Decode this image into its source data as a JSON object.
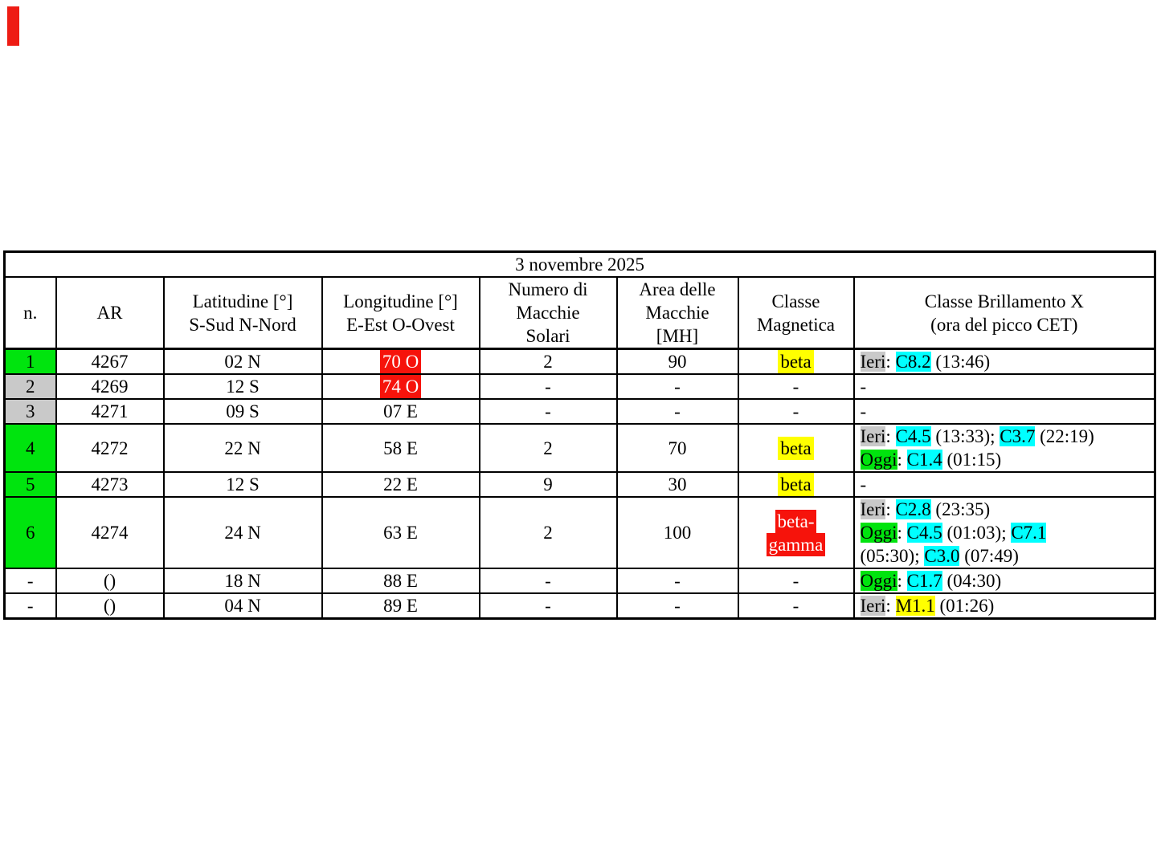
{
  "colors": {
    "green": "#00e40e",
    "gray": "#c9c9c9",
    "yellow": "#ffff00",
    "cyan": "#00ffff",
    "red": "#f6130b",
    "marker": "#ee1c14"
  },
  "table": {
    "title": "3 novembre 2025",
    "headers": [
      "n.",
      "AR",
      "Latitudine [°]\nS-Sud N-Nord",
      "Longitudine [°]\nE-Est O-Ovest",
      "Numero di\nMacchie\nSolari",
      "Area delle\nMacchie\n[MH]",
      "Classe\nMagnetica",
      "Classe Brillamento X\n(ora del picco CET)"
    ],
    "rows": [
      {
        "n": {
          "t": "1",
          "bg": "green"
        },
        "ar": "4267",
        "lat": "02 N",
        "lon": [
          {
            "t": "70 O",
            "h": "red"
          }
        ],
        "num": "2",
        "area": "90",
        "cls": [
          [
            {
              "t": "beta",
              "h": "yellow"
            }
          ]
        ],
        "flare": [
          [
            {
              "t": "Ieri",
              "h": "gray"
            },
            {
              "t": ": "
            },
            {
              "t": "C8.2",
              "h": "cyan"
            },
            {
              "t": " (13:46)"
            }
          ]
        ]
      },
      {
        "n": {
          "t": "2",
          "bg": "gray"
        },
        "ar": "4269",
        "lat": "12 S",
        "lon": [
          {
            "t": "74 O",
            "h": "red"
          }
        ],
        "num": "-",
        "area": "-",
        "cls": [
          [
            {
              "t": "-"
            }
          ]
        ],
        "flare": [
          [
            {
              "t": "-"
            }
          ]
        ]
      },
      {
        "n": {
          "t": "3",
          "bg": "gray"
        },
        "ar": "4271",
        "lat": "09 S",
        "lon": [
          {
            "t": "07 E"
          }
        ],
        "num": "-",
        "area": "-",
        "cls": [
          [
            {
              "t": "-"
            }
          ]
        ],
        "flare": [
          [
            {
              "t": "-"
            }
          ]
        ]
      },
      {
        "n": {
          "t": "4",
          "bg": "green"
        },
        "ar": "4272",
        "lat": "22 N",
        "lon": [
          {
            "t": "58 E"
          }
        ],
        "num": "2",
        "area": "70",
        "cls": [
          [
            {
              "t": "beta",
              "h": "yellow"
            }
          ]
        ],
        "flare": [
          [
            {
              "t": "Ieri",
              "h": "gray"
            },
            {
              "t": ": "
            },
            {
              "t": "C4.5",
              "h": "cyan"
            },
            {
              "t": " (13:33); "
            },
            {
              "t": "C3.7",
              "h": "cyan"
            },
            {
              "t": " (22:19)"
            }
          ],
          [
            {
              "t": "Oggi",
              "h": "green"
            },
            {
              "t": ": "
            },
            {
              "t": "C1.4",
              "h": "cyan"
            },
            {
              "t": " (01:15)"
            }
          ]
        ]
      },
      {
        "n": {
          "t": "5",
          "bg": "green"
        },
        "ar": "4273",
        "lat": "12 S",
        "lon": [
          {
            "t": "22 E"
          }
        ],
        "num": "9",
        "area": "30",
        "cls": [
          [
            {
              "t": "beta",
              "h": "yellow"
            }
          ]
        ],
        "flare": [
          [
            {
              "t": "-"
            }
          ]
        ]
      },
      {
        "n": {
          "t": "6",
          "bg": "green"
        },
        "ar": "4274",
        "lat": "24 N",
        "lon": [
          {
            "t": "63 E"
          }
        ],
        "num": "2",
        "area": "100",
        "cls": [
          [
            {
              "t": "beta-",
              "h": "red"
            }
          ],
          [
            {
              "t": "gamma",
              "h": "red"
            }
          ]
        ],
        "flare": [
          [
            {
              "t": "Ieri",
              "h": "gray"
            },
            {
              "t": ": "
            },
            {
              "t": "C2.8",
              "h": "cyan"
            },
            {
              "t": " (23:35)"
            }
          ],
          [
            {
              "t": "Oggi",
              "h": "green"
            },
            {
              "t": ": "
            },
            {
              "t": "C4.5",
              "h": "cyan"
            },
            {
              "t": " (01:03); "
            },
            {
              "t": "C7.1",
              "h": "cyan"
            }
          ],
          [
            {
              "t": "(05:30); "
            },
            {
              "t": "C3.0",
              "h": "cyan"
            },
            {
              "t": " (07:49)"
            }
          ]
        ]
      },
      {
        "n": {
          "t": "-"
        },
        "ar": "()",
        "lat": "18 N",
        "lon": [
          {
            "t": "88 E"
          }
        ],
        "num": "-",
        "area": "-",
        "cls": [
          [
            {
              "t": "-"
            }
          ]
        ],
        "flare": [
          [
            {
              "t": "Oggi",
              "h": "green"
            },
            {
              "t": ": "
            },
            {
              "t": "C1.7",
              "h": "cyan"
            },
            {
              "t": " (04:30)"
            }
          ]
        ]
      },
      {
        "n": {
          "t": "-"
        },
        "ar": "()",
        "lat": "04 N",
        "lon": [
          {
            "t": "89 E"
          }
        ],
        "num": "-",
        "area": "-",
        "cls": [
          [
            {
              "t": "-"
            }
          ]
        ],
        "flare": [
          [
            {
              "t": "Ieri",
              "h": "gray"
            },
            {
              "t": ": "
            },
            {
              "t": "M1.1",
              "h": "yellow"
            },
            {
              "t": " (01:26)"
            }
          ]
        ]
      }
    ]
  }
}
